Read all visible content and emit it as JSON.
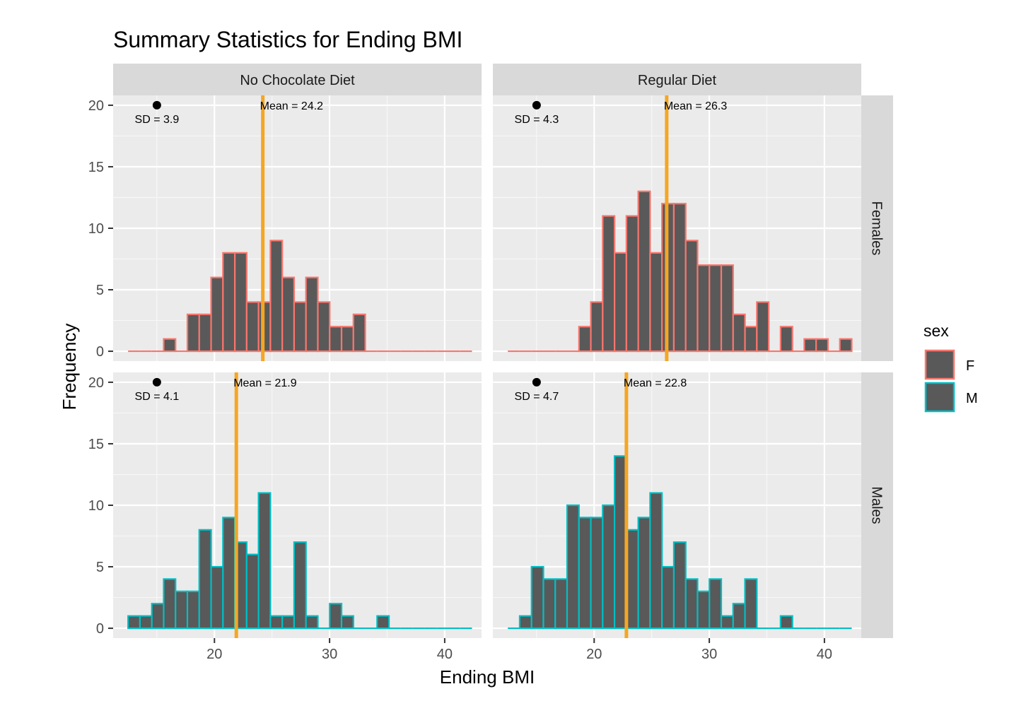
{
  "chart_data": {
    "type": "bar",
    "title": "Summary Statistics for Ending BMI",
    "xlabel": "Ending BMI",
    "ylabel": "Frequency",
    "xlim": [
      11.2,
      43.2
    ],
    "ylim": [
      -0.8,
      20.8
    ],
    "x_ticks": [
      20,
      30,
      40
    ],
    "y_ticks": [
      0,
      5,
      10,
      15,
      20
    ],
    "bin_width": 1.03,
    "bin_start": 12.5,
    "grid": true,
    "legend": {
      "title": "sex",
      "position": "right",
      "entries": [
        {
          "label": "F",
          "outline": "#F8766D"
        },
        {
          "label": "M",
          "outline": "#00BFC4"
        }
      ]
    },
    "bar_fill": "#595959",
    "mean_line_color": "#F5A623",
    "col_facets": [
      "No Chocolate Diet",
      "Regular Diet"
    ],
    "row_facets": [
      "Females",
      "Males"
    ],
    "panels": [
      {
        "col": 0,
        "row": 0,
        "sex": "F",
        "counts": [
          0,
          0,
          0,
          1,
          0,
          3,
          3,
          6,
          8,
          8,
          4,
          4,
          9,
          6,
          4,
          6,
          4,
          2,
          2,
          3,
          0,
          0,
          0,
          0,
          0,
          0,
          0,
          0,
          0
        ],
        "mean": 24.2,
        "mean_label": "Mean = 24.2",
        "sd_label": "SD = 3.9",
        "sd_point": [
          15,
          20
        ]
      },
      {
        "col": 1,
        "row": 0,
        "sex": "F",
        "counts": [
          0,
          0,
          0,
          0,
          0,
          0,
          2,
          4,
          11,
          8,
          11,
          13,
          8,
          12,
          12,
          9,
          7,
          7,
          7,
          3,
          2,
          4,
          0,
          2,
          0,
          1,
          1,
          0,
          1
        ],
        "mean": 26.3,
        "mean_label": "Mean = 26.3",
        "sd_label": "SD = 4.3",
        "sd_point": [
          15,
          20
        ]
      },
      {
        "col": 0,
        "row": 1,
        "sex": "M",
        "counts": [
          1,
          1,
          2,
          4,
          3,
          3,
          8,
          5,
          9,
          7,
          6,
          11,
          1,
          1,
          7,
          1,
          0,
          2,
          1,
          0,
          0,
          1,
          0,
          0,
          0,
          0,
          0,
          0,
          0
        ],
        "mean": 21.9,
        "mean_label": "Mean = 21.9",
        "sd_label": "SD = 4.1",
        "sd_point": [
          15,
          20
        ]
      },
      {
        "col": 1,
        "row": 1,
        "sex": "M",
        "counts": [
          0,
          1,
          5,
          4,
          4,
          10,
          9,
          9,
          10,
          14,
          8,
          9,
          11,
          5,
          7,
          4,
          3,
          4,
          1,
          2,
          4,
          0,
          0,
          1,
          0,
          0,
          0,
          0,
          0
        ],
        "mean": 22.8,
        "mean_label": "Mean = 22.8",
        "sd_label": "SD = 4.7",
        "sd_point": [
          15,
          20
        ]
      }
    ]
  }
}
